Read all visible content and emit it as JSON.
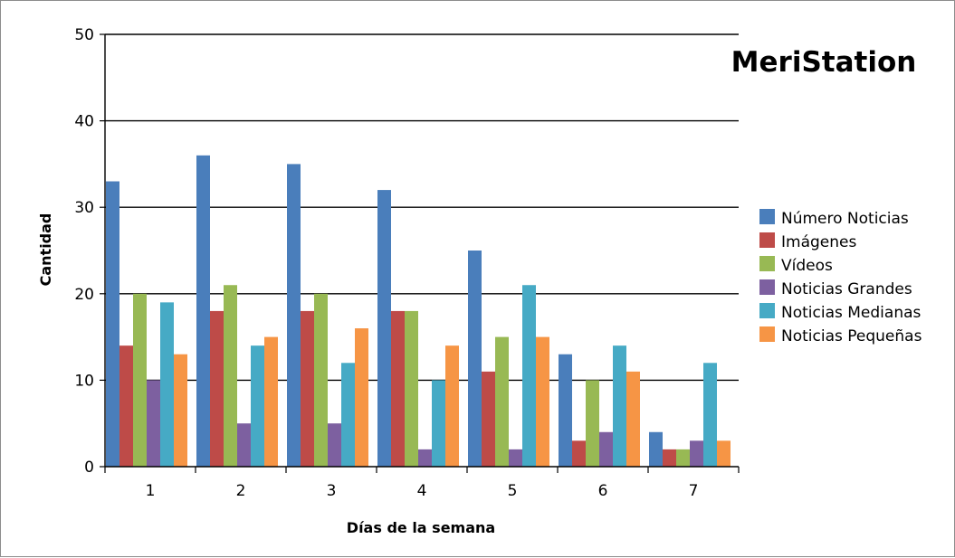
{
  "chart_data": {
    "type": "bar",
    "title": "MeriStation",
    "xlabel": "Días de la semana",
    "ylabel": "Cantidad",
    "categories": [
      "1",
      "2",
      "3",
      "4",
      "5",
      "6",
      "7"
    ],
    "ylim": [
      0,
      50
    ],
    "yticks": [
      "0",
      "10",
      "20",
      "30",
      "40",
      "50"
    ],
    "grid": true,
    "legend_position": "right",
    "series": [
      {
        "name": "Número Noticias",
        "color": "#4a7ebb",
        "values": [
          33,
          36,
          35,
          32,
          25,
          13,
          4
        ]
      },
      {
        "name": "Imágenes",
        "color": "#be4b48",
        "values": [
          14,
          18,
          18,
          18,
          11,
          3,
          2
        ]
      },
      {
        "name": "Vídeos",
        "color": "#98b954",
        "values": [
          20,
          21,
          20,
          18,
          15,
          10,
          2
        ]
      },
      {
        "name": "Noticias Grandes",
        "color": "#7d60a0",
        "values": [
          10,
          5,
          5,
          2,
          2,
          4,
          3
        ]
      },
      {
        "name": "Noticias Medianas",
        "color": "#46aac5",
        "values": [
          19,
          14,
          12,
          10,
          21,
          14,
          12
        ]
      },
      {
        "name": "Noticias Pequeñas",
        "color": "#f69545",
        "values": [
          13,
          15,
          16,
          14,
          15,
          11,
          3
        ]
      }
    ]
  }
}
